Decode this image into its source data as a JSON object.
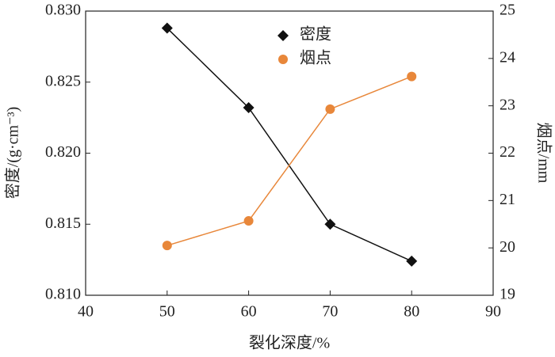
{
  "chart_data": {
    "type": "line",
    "xlabel": "裂化深度/%",
    "ylabel": "密度/(g·cm⁻³)",
    "y2label": "烟点/mm",
    "x": [
      50,
      60,
      70,
      80
    ],
    "xlim": [
      40,
      90
    ],
    "xticks": [
      40,
      50,
      60,
      70,
      80,
      90
    ],
    "ylim": [
      0.81,
      0.83
    ],
    "yticks": [
      {
        "value": 0.81,
        "label": "0.810"
      },
      {
        "value": 0.815,
        "label": "0.815"
      },
      {
        "value": 0.82,
        "label": "0.820"
      },
      {
        "value": 0.825,
        "label": "0.825"
      },
      {
        "value": 0.83,
        "label": "0.830"
      }
    ],
    "y2lim": [
      19,
      25
    ],
    "y2ticks": [
      19,
      20,
      21,
      22,
      23,
      24,
      25
    ],
    "legend": "top-center",
    "series": [
      {
        "name": "密度",
        "color": "#111111",
        "marker": "diamond",
        "values": [
          0.8288,
          0.8232,
          0.815,
          0.8124
        ]
      },
      {
        "name": "烟点",
        "color": "#e8873a",
        "marker": "circle",
        "axis": "y2",
        "values": [
          20.05,
          20.57,
          22.93,
          23.62
        ]
      }
    ]
  }
}
